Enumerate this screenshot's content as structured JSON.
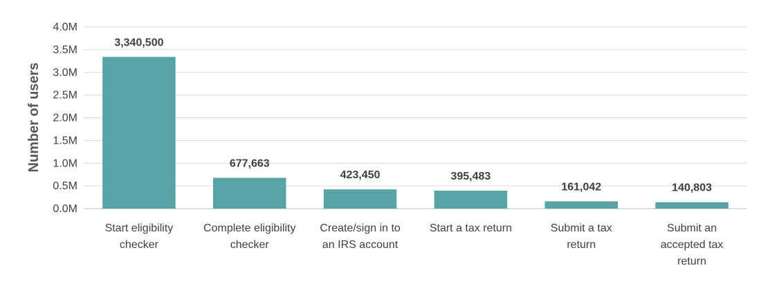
{
  "chart_data": {
    "type": "bar",
    "title": "",
    "xlabel": "",
    "ylabel": "Number of users",
    "ylim": [
      0,
      4000000
    ],
    "yticks": [
      "0.0M",
      "0.5M",
      "1.0M",
      "1.5M",
      "2.0M",
      "2.5M",
      "3.0M",
      "3.5M",
      "4.0M"
    ],
    "grid": true,
    "legend": "none",
    "bar_color": "#58a3a5",
    "categories": [
      [
        "Start eligibility",
        "checker"
      ],
      [
        "Complete eligibility",
        "checker"
      ],
      [
        "Create/sign in to",
        "an IRS account"
      ],
      [
        "Start a tax return"
      ],
      [
        "Submit a tax",
        "return"
      ],
      [
        "Submit an",
        "accepted tax",
        "return"
      ]
    ],
    "values": [
      3340500,
      677663,
      423450,
      395483,
      161042,
      140803
    ],
    "data_labels": [
      "3,340,500",
      "677,663",
      "423,450",
      "395,483",
      "161,042",
      "140,803"
    ]
  }
}
